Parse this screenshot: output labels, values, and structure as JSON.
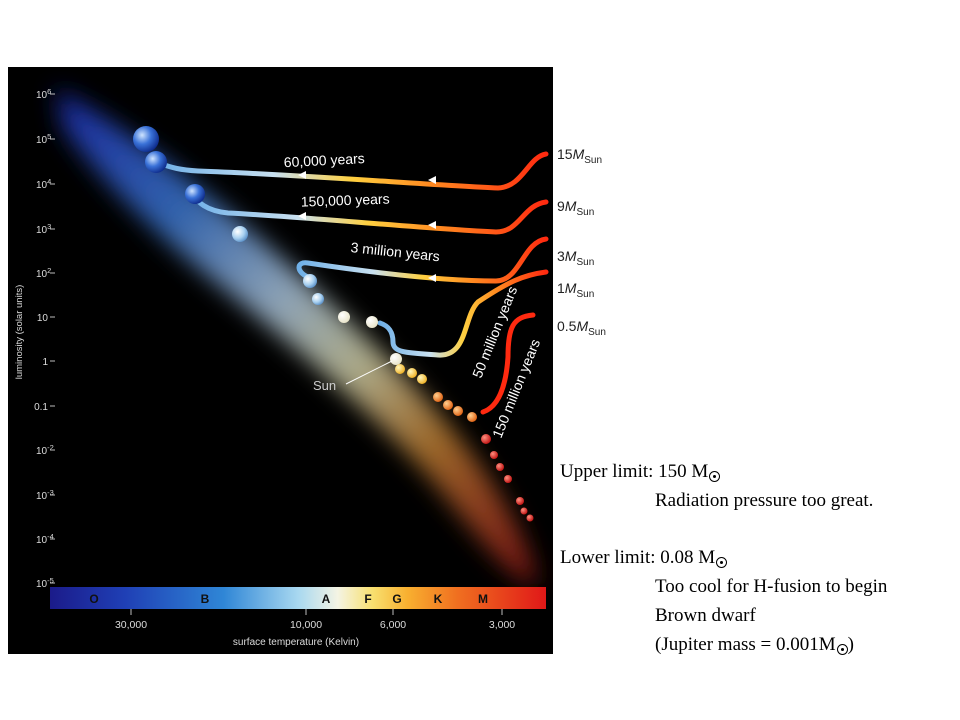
{
  "diagram": {
    "y_axis_title": "luminosity (solar units)",
    "y_ticks": [
      {
        "base": "10",
        "exp": "6"
      },
      {
        "base": "10",
        "exp": "5"
      },
      {
        "base": "10",
        "exp": "4"
      },
      {
        "base": "10",
        "exp": "3"
      },
      {
        "base": "10",
        "exp": "2"
      },
      {
        "base": "10",
        "exp": ""
      },
      {
        "base": "1",
        "exp": ""
      },
      {
        "base": "0.1",
        "exp": ""
      },
      {
        "base": "10",
        "exp": "-2"
      },
      {
        "base": "10",
        "exp": "-3"
      },
      {
        "base": "10",
        "exp": "-4"
      },
      {
        "base": "10",
        "exp": "-5"
      }
    ],
    "x_axis_title": "surface temperature (Kelvin)",
    "x_ticks": [
      "30,000",
      "10,000",
      "6,000",
      "3,000"
    ],
    "spectral_classes": [
      "O",
      "B",
      "A",
      "F",
      "G",
      "K",
      "M"
    ],
    "track_times": {
      "t15": "60,000 years",
      "t9": "150,000 years",
      "t3": "3 million years",
      "t1": "50 million years",
      "t05": "150 million years"
    },
    "mass_labels": [
      {
        "num": "15",
        "M": "M",
        "sub": "Sun"
      },
      {
        "num": "9",
        "M": "M",
        "sub": "Sun"
      },
      {
        "num": "3",
        "M": "M",
        "sub": "Sun"
      },
      {
        "num": "1",
        "M": "M",
        "sub": "Sun"
      },
      {
        "num": "0.5",
        "M": "M",
        "sub": "Sun"
      }
    ],
    "sun_label": "Sun"
  },
  "notes": {
    "upper_limit": "Upper limit: 150 M",
    "upper_reason": "Radiation pressure too great.",
    "lower_limit": "Lower limit: 0.08 M",
    "lower_reason": "Too cool for H-fusion to begin",
    "brown_dwarf": "Brown dwarf",
    "jupiter_prefix": "(Jupiter mass = 0.001M",
    "jupiter_suffix": ")"
  }
}
